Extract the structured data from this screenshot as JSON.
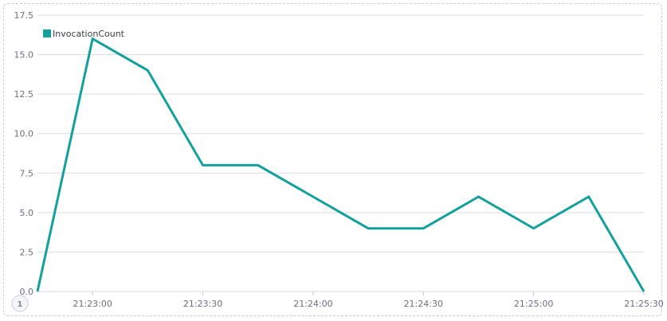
{
  "chart_data": {
    "type": "line",
    "title": "",
    "xlabel": "",
    "ylabel": "",
    "ylim": [
      0,
      17.5
    ],
    "y_ticks": [
      "0.0",
      "2.5",
      "5.0",
      "7.5",
      "10.0",
      "12.5",
      "15.0",
      "17.5"
    ],
    "x_tick_labels": [
      "21:23:00",
      "21:23:30",
      "21:24:00",
      "21:24:30",
      "21:25:00",
      "21:25:30"
    ],
    "grid": true,
    "legend_position": "top-left",
    "series": [
      {
        "name": "InvocationCount",
        "color": "#14a19e",
        "x": [
          "21:22:45",
          "21:23:00",
          "21:23:15",
          "21:23:30",
          "21:23:45",
          "21:24:00",
          "21:24:15",
          "21:24:30",
          "21:24:45",
          "21:25:00",
          "21:25:15",
          "21:25:30"
        ],
        "values": [
          0,
          16,
          14,
          8,
          8,
          6,
          4,
          4,
          6,
          4,
          6,
          0
        ]
      }
    ]
  },
  "page_badge": "1"
}
